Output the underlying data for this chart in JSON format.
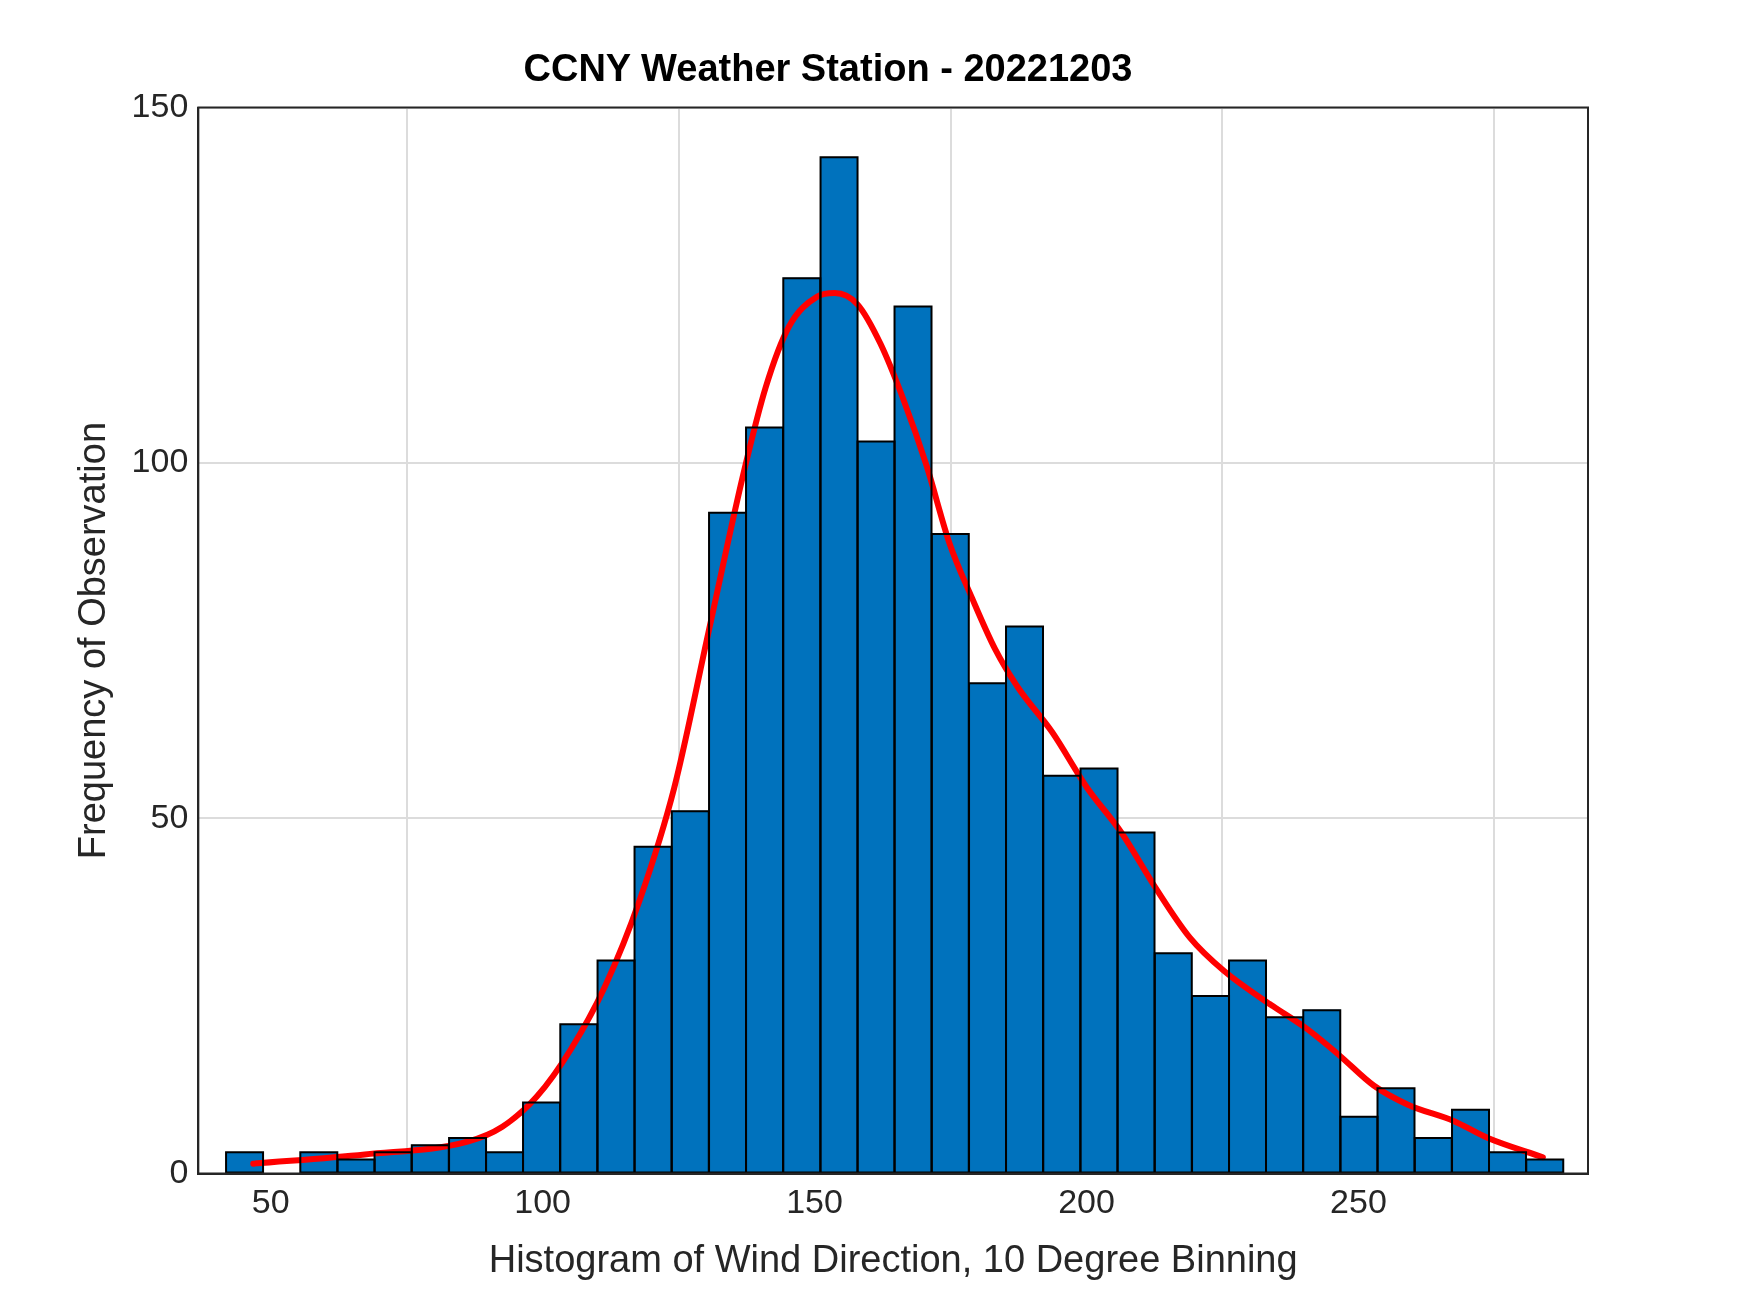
{
  "chart_data": {
    "type": "histogram",
    "title": "CCNY Weather Station - 20221203",
    "xlabel": "Histogram of Wind Direction, 10 Degree Binning",
    "ylabel": "Frequency of Observation",
    "series": [
      {
        "color": "#0072bd",
        "bins": [
          41.8,
          48.6,
          55.4,
          62.3,
          69.1,
          75.9,
          82.8,
          89.6,
          96.4,
          103.2,
          110.1,
          116.9,
          123.7,
          130.6,
          137.4,
          144.2,
          151.1,
          157.9,
          164.7,
          171.5,
          178.4,
          185.2,
          192.0,
          198.9,
          205.7,
          212.5,
          219.4,
          226.2,
          233.0,
          239.8,
          246.7,
          253.5,
          260.3,
          267.2,
          274.0,
          280.8,
          287.7
        ],
        "values": [
          3,
          0,
          3,
          2,
          3,
          4,
          5,
          3,
          10,
          21,
          30,
          46,
          51,
          93,
          105,
          126,
          143,
          103,
          122,
          90,
          69,
          77,
          56,
          57,
          48,
          31,
          25,
          30,
          22,
          23,
          8,
          12,
          5,
          9,
          3,
          2
        ]
      },
      {
        "type": "line",
        "color": "#ff0000",
        "x": [
          46.8,
          67.3,
          86.2,
          92.6,
          98.9,
          105.2,
          111.5,
          117.9,
          124.2,
          130.5,
          136.8,
          141.0,
          145.3,
          150.5,
          153.7,
          157.9,
          162.1,
          166.3,
          170.6,
          174.8,
          179.0,
          183.2,
          187.4,
          193.7,
          200.1,
          206.4,
          212.7,
          219.0,
          225.3,
          233.8,
          240.1,
          246.4,
          252.8,
          259.1,
          267.5,
          273.8,
          283.9
        ],
        "values": [
          1.4,
          2.7,
          4.5,
          6.6,
          10.8,
          17.5,
          26.4,
          38.6,
          54.3,
          76.2,
          98.1,
          110.6,
          119.2,
          123.4,
          123.9,
          122.3,
          116.8,
          109.0,
          99.6,
          88.7,
          80.9,
          73.8,
          68.4,
          62.1,
          54.3,
          48.0,
          40.2,
          33.2,
          28.5,
          23.8,
          20.6,
          16.7,
          12.4,
          9.7,
          7.4,
          5.0,
          2.3
        ]
      }
    ],
    "xlim": [
      36.7,
      292.2
    ],
    "xticks": [
      50,
      100,
      150,
      200,
      250
    ],
    "ylim": [
      0,
      150
    ],
    "yticks": [
      0,
      50,
      100,
      150
    ],
    "grid": true,
    "legend": false
  }
}
